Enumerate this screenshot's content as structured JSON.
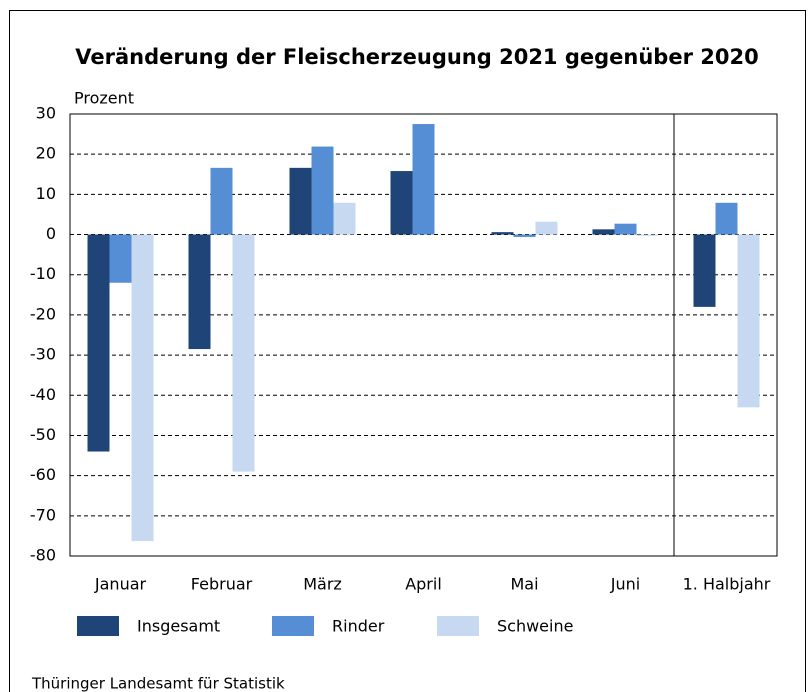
{
  "chart_data": {
    "type": "bar",
    "title": "Veränderung der Fleischerzeugung 2021 gegenüber 2020",
    "y_label": "Prozent",
    "source": "Thüringer Landesamt für Statistik",
    "categories": [
      "Januar",
      "Februar",
      "März",
      "April",
      "Mai",
      "Juni",
      "1. Halbjahr"
    ],
    "series": [
      {
        "name": "Insgesamt",
        "color": "#1f4478",
        "values": [
          -54,
          -28.5,
          16.6,
          15.8,
          0.6,
          1.3,
          -18
        ]
      },
      {
        "name": "Rinder",
        "color": "#558ed5",
        "values": [
          -12,
          16.6,
          21.9,
          27.5,
          -0.6,
          2.7,
          7.9
        ]
      },
      {
        "name": "Schweine",
        "color": "#c6d9f1",
        "values": [
          -76.3,
          -59,
          7.9,
          0,
          3.2,
          -0.3,
          -43
        ]
      }
    ],
    "ylim": [
      -80,
      30
    ],
    "yticks": [
      -80,
      -70,
      -60,
      -50,
      -40,
      -30,
      -20,
      -10,
      0,
      10,
      20,
      30
    ],
    "grid": true
  }
}
